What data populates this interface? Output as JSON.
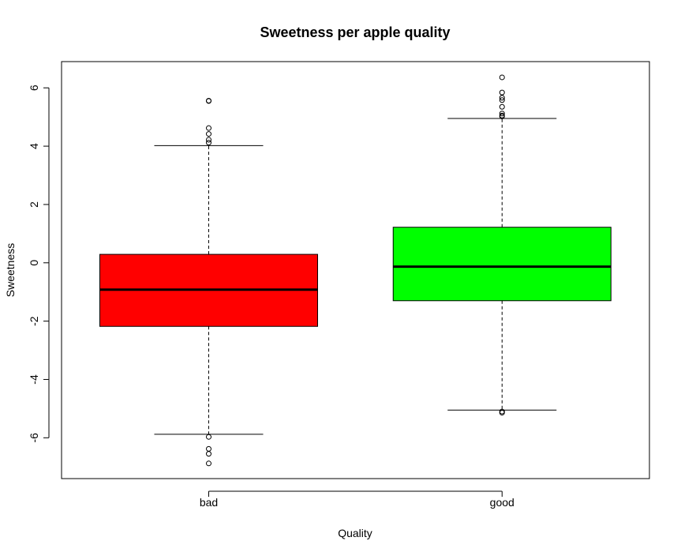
{
  "chart_data": {
    "type": "boxplot",
    "title": "Sweetness per apple quality",
    "xlabel": "Quality",
    "ylabel": "Sweetness",
    "ylim": [
      -7.4,
      6.9
    ],
    "yticks": [
      -6,
      -4,
      -2,
      0,
      2,
      4,
      6
    ],
    "yticks_rotated": true,
    "grid": false,
    "legend": "none",
    "categories": [
      "bad",
      "good"
    ],
    "boxes": [
      {
        "category": "bad",
        "color": "#ff0000",
        "whisker_low": -5.88,
        "q1": -2.18,
        "median": -0.92,
        "q3": 0.29,
        "whisker_high": 4.02,
        "outliers": [
          5.55,
          5.56,
          4.62,
          4.42,
          4.22,
          4.12,
          -5.97,
          -6.38,
          -6.55,
          -6.88
        ]
      },
      {
        "category": "good",
        "color": "#00ff00",
        "whisker_low": -5.05,
        "q1": -1.3,
        "median": -0.13,
        "q3": 1.22,
        "whisker_high": 4.95,
        "outliers": [
          6.36,
          5.84,
          5.66,
          5.58,
          5.35,
          5.12,
          5.05,
          5.02,
          -5.1,
          -5.14
        ]
      }
    ]
  }
}
